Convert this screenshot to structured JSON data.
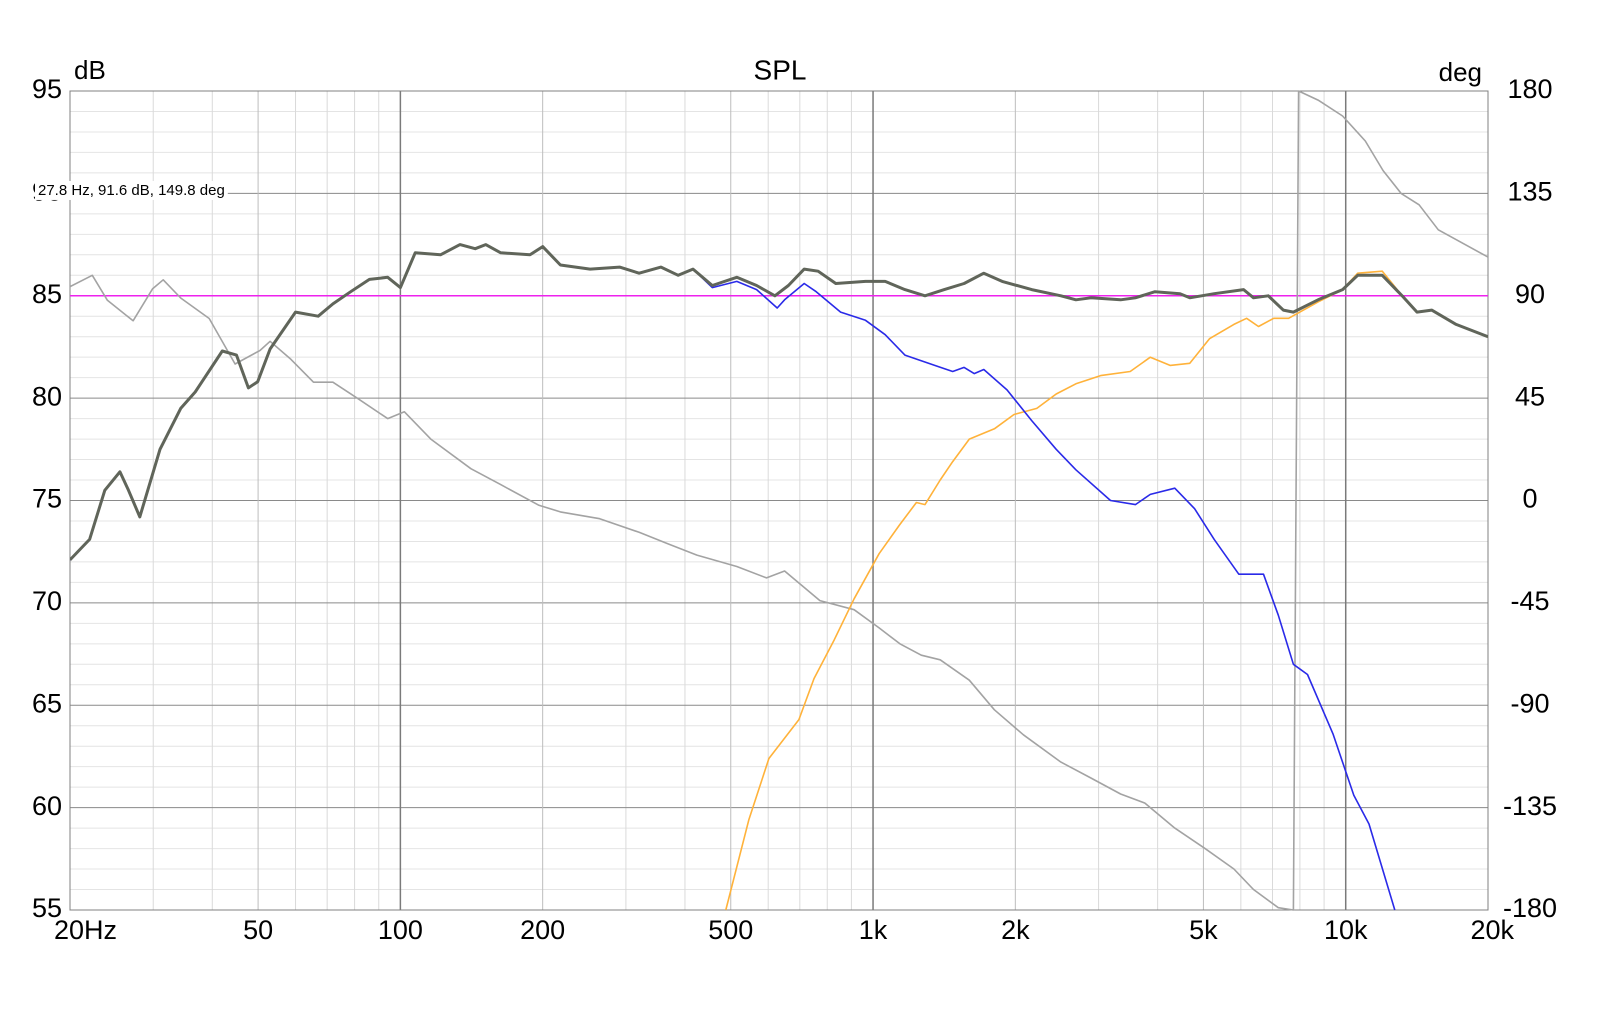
{
  "chart_data": {
    "type": "line",
    "title": "SPL",
    "ylabel": "dB",
    "y2label": "deg",
    "annotation": "27.8 Hz, 91.6 dB, 149.8 deg",
    "xscale": "log",
    "grid": true,
    "xlim": [
      20,
      20000
    ],
    "ylim": [
      55,
      95
    ],
    "y2lim": [
      -180,
      180
    ],
    "xticks": [
      {
        "value": 20,
        "label": "20Hz"
      },
      50,
      100,
      200,
      500,
      {
        "value": 1000,
        "label": "1k"
      },
      {
        "value": 2000,
        "label": "2k"
      },
      {
        "value": 5000,
        "label": "5k"
      },
      {
        "value": 10000,
        "label": "10k"
      },
      {
        "value": 20000,
        "label": "20k"
      }
    ],
    "xminor": [
      30,
      40,
      60,
      70,
      80,
      90,
      300,
      400,
      600,
      700,
      800,
      900,
      3000,
      4000,
      6000,
      7000,
      8000,
      9000
    ],
    "yticks": [
      55,
      60,
      65,
      70,
      75,
      80,
      85,
      90,
      95
    ],
    "yminor": [
      56,
      57,
      58,
      59,
      61,
      62,
      63,
      64,
      66,
      67,
      68,
      69,
      71,
      72,
      73,
      74,
      76,
      77,
      78,
      79,
      81,
      82,
      83,
      84,
      86,
      87,
      88,
      89,
      91,
      92,
      93,
      94
    ],
    "y2ticks": [
      -180,
      -135,
      -90,
      -45,
      0,
      45,
      90,
      135,
      180
    ],
    "reference_line": {
      "value": 85,
      "color": "#ee22ee"
    },
    "series": [
      {
        "color": "#60655a",
        "width": 3,
        "x": [
          20,
          22,
          23.7,
          25.5,
          26.6,
          28.1,
          31,
          34.3,
          36.8,
          42,
          45,
          47.7,
          49.9,
          53,
          60,
          67,
          72,
          78.5,
          86,
          94,
          100,
          107.5,
          121.6,
          133.7,
          144,
          151.5,
          163,
          188,
          200,
          218,
          252,
          291,
          320,
          356,
          387,
          416,
          457,
          515,
          567,
          620,
          662,
          715,
          765,
          834,
          964,
          1061,
          1168,
          1288,
          1415,
          1558,
          1715,
          1876,
          2166,
          2497,
          2686,
          2890,
          3340,
          3590,
          3950,
          4460,
          4680,
          5270,
          6080,
          6380,
          6860,
          7380,
          7750,
          8740,
          9850,
          10600,
          11950,
          13160,
          14150,
          15200,
          17120,
          20000
        ],
        "values": [
          72.1,
          73.1,
          75.5,
          76.4,
          75.5,
          74.2,
          77.5,
          79.5,
          80.3,
          82.3,
          82.1,
          80.5,
          80.8,
          82.4,
          84.2,
          84,
          84.6,
          85.2,
          85.8,
          85.9,
          85.4,
          87.1,
          87,
          87.5,
          87.3,
          87.5,
          87.1,
          87,
          87.4,
          86.5,
          86.3,
          86.4,
          86.1,
          86.4,
          86,
          86.3,
          85.5,
          85.9,
          85.5,
          85,
          85.5,
          86.3,
          86.2,
          85.6,
          85.7,
          85.7,
          85.3,
          85,
          85.3,
          85.6,
          86.1,
          85.7,
          85.3,
          85,
          84.8,
          84.9,
          84.8,
          84.9,
          85.2,
          85.1,
          84.9,
          85.1,
          85.3,
          84.9,
          85,
          84.3,
          84.2,
          84.8,
          85.3,
          86,
          86,
          85,
          84.2,
          84.3,
          83.6,
          83
        ]
      },
      {
        "color": "#2a2ae8",
        "width": 1.6,
        "x": [
          20,
          22,
          23.7,
          25.5,
          26.6,
          28.1,
          31,
          34.3,
          36.8,
          42,
          45,
          47.7,
          49.9,
          53,
          60,
          67,
          72,
          78.5,
          86,
          94,
          100,
          107.5,
          121.6,
          133.7,
          144,
          151.5,
          163,
          188,
          200,
          218,
          252,
          291,
          320,
          356,
          387,
          416,
          457,
          515,
          567,
          627,
          650,
          715,
          758,
          854,
          964,
          1061,
          1168,
          1350,
          1474,
          1558,
          1637,
          1715,
          1920,
          2166,
          2440,
          2686,
          3180,
          3590,
          3860,
          4350,
          4790,
          5270,
          5940,
          6700,
          7200,
          7750,
          8300,
          9400,
          10400,
          11200,
          12700
        ],
        "values": [
          72.1,
          73.1,
          75.5,
          76.4,
          75.5,
          74.2,
          77.5,
          79.5,
          80.3,
          82.3,
          82.1,
          80.5,
          80.8,
          82.4,
          84.2,
          84,
          84.6,
          85.2,
          85.8,
          85.9,
          85.4,
          87.1,
          87,
          87.5,
          87.3,
          87.5,
          87.1,
          87,
          87.4,
          86.5,
          86.3,
          86.4,
          86.1,
          86.4,
          86,
          86.3,
          85.4,
          85.7,
          85.3,
          84.4,
          84.8,
          85.6,
          85.2,
          84.2,
          83.8,
          83.1,
          82.1,
          81.6,
          81.3,
          81.5,
          81.2,
          81.4,
          80.4,
          78.9,
          77.5,
          76.5,
          75,
          74.8,
          75.3,
          75.6,
          74.6,
          73.1,
          71.4,
          71.4,
          69.4,
          67,
          66.5,
          63.6,
          60.6,
          59.2,
          55
        ]
      },
      {
        "color": "#ffb23a",
        "width": 1.6,
        "x": [
          488,
          546,
          602,
          697,
          750,
          828,
          912,
          1030,
          1137,
          1235,
          1288,
          1387,
          1474,
          1598,
          1806,
          1987,
          2220,
          2440,
          2686,
          3030,
          3500,
          3860,
          4250,
          4680,
          5150,
          5800,
          6170,
          6540,
          7040,
          7570,
          8740,
          9850,
          10600,
          11950,
          13160,
          14150,
          15200,
          17120,
          20000
        ],
        "values": [
          55,
          59.4,
          62.4,
          64.3,
          66.3,
          68.2,
          70.2,
          72.4,
          73.8,
          74.9,
          74.8,
          76,
          76.9,
          78,
          78.5,
          79.2,
          79.5,
          80.2,
          80.7,
          81.1,
          81.3,
          82,
          81.6,
          81.7,
          82.9,
          83.6,
          83.9,
          83.5,
          83.9,
          83.9,
          84.7,
          85.3,
          86.1,
          86.2,
          85,
          84.2,
          84.3,
          83.6,
          83
        ]
      },
      {
        "color": "#a3a3a3",
        "width": 1.6,
        "axis": "y2",
        "x": [
          20,
          22.3,
          24,
          27.2,
          29.9,
          31.5,
          34.3,
          39.4,
          44.7,
          50.5,
          53,
          58.7,
          65.5,
          72,
          81,
          94,
          102,
          116,
          141,
          163,
          196,
          218,
          264,
          320,
          368,
          424,
          515,
          595,
          650,
          772,
          912,
          1030,
          1140,
          1265,
          1387,
          1598,
          1806,
          2080,
          2497,
          2890,
          3340,
          3760,
          4350,
          5040,
          5800,
          6380,
          7200,
          7750,
          7950,
          8740,
          9850,
          11000,
          12000,
          13100,
          14300,
          15700,
          20000
        ],
        "values": [
          94,
          99,
          88,
          79,
          93,
          97,
          89,
          80,
          60,
          66,
          70,
          62,
          52,
          52,
          45,
          36,
          39,
          27,
          14,
          7,
          -2,
          -5,
          -8,
          -14,
          -19,
          -24,
          -29,
          -34,
          -31,
          -44,
          -48,
          -56,
          -63,
          -68,
          -70,
          -79,
          -92,
          -103,
          -115,
          -122,
          -129,
          -133,
          -144,
          -153,
          -162,
          -171,
          -179,
          -180,
          180,
          176,
          169,
          158,
          145,
          135,
          130,
          119,
          107
        ]
      }
    ]
  }
}
